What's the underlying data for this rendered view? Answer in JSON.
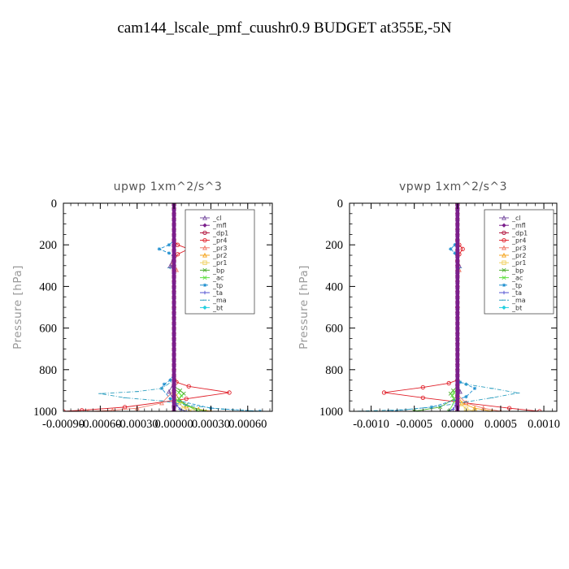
{
  "title": "cam144_lscale_pmf_cuushr0.9  BUDGET at355E,-5N",
  "colors": {
    "_cl": "#7b52a3",
    "_mfl": "#7b1f8c",
    "_dp1": "#b0103a",
    "_pr4": "#e0202a",
    "_pr3": "#f07a6a",
    "_pr2": "#f5a623",
    "_pr1": "#f0d060",
    "_bp": "#50b030",
    "_ac": "#60e040",
    "_tp": "#2090d0",
    "_ta": "#5050d0",
    "_ma": "#30a0c0",
    "_bt": "#20d0e0"
  },
  "chart_data": [
    {
      "type": "line",
      "title": "upwp   1xm^2/s^3",
      "ylabel": "Pressure [hPa]",
      "xlim": [
        -0.0009,
        0.0008
      ],
      "ylim": [
        1000,
        0
      ],
      "xtick_labels": [
        "-0.00090",
        "-0.00060",
        "-0.00030",
        "0.00000",
        "0.00030",
        "0.00060"
      ],
      "xtick_values": [
        -0.0009,
        -0.0006,
        -0.0003,
        0.0,
        0.0003,
        0.0006
      ],
      "ytick_labels": [
        "0",
        "200",
        "400",
        "600",
        "800",
        "1000"
      ],
      "ytick_values": [
        0,
        200,
        400,
        600,
        800,
        1000
      ],
      "legend": [
        "_cl",
        "_mfl",
        "_dp1",
        "_pr4",
        "_pr3",
        "_pr2",
        "_pr1",
        "_bp",
        "_ac",
        "_tp",
        "_ta",
        "_ma",
        "_bt"
      ],
      "legend_loc": "upper right",
      "series": [
        {
          "name": "_pr4",
          "x": [
            0,
            0,
            3e-05,
            0.00012,
            3e-05,
            0,
            0,
            0,
            0,
            2e-05,
            0.00012,
            0.00045,
            0.0001,
            -0.0004,
            -0.00075,
            -0.0009
          ],
          "y": [
            0,
            180,
            200,
            220,
            245,
            280,
            320,
            500,
            800,
            860,
            880,
            910,
            940,
            980,
            995,
            1000
          ]
        },
        {
          "name": "_pr3",
          "x": [
            0,
            0,
            -2e-05,
            2e-05,
            0,
            0,
            -0.0001,
            -0.0003,
            -0.0005,
            -0.0007
          ],
          "y": [
            0,
            250,
            290,
            320,
            350,
            900,
            960,
            985,
            995,
            1000
          ]
        },
        {
          "name": "_pr2",
          "x": [
            0,
            0,
            5e-05,
            0.0001,
            0.0002,
            0.0003
          ],
          "y": [
            0,
            900,
            950,
            975,
            990,
            1000
          ]
        },
        {
          "name": "_pr1",
          "x": [
            0,
            0,
            4e-05,
            8e-05,
            0.00015
          ],
          "y": [
            0,
            920,
            960,
            985,
            1000
          ]
        },
        {
          "name": "_bp",
          "x": [
            0,
            0,
            5e-05,
            8e-05,
            4e-05,
            0.0001,
            0.00025
          ],
          "y": [
            0,
            880,
            900,
            915,
            940,
            970,
            1000
          ]
        },
        {
          "name": "_ac",
          "x": [
            0,
            0,
            4e-05,
            6e-05,
            3e-05,
            0.0002
          ],
          "y": [
            0,
            890,
            910,
            925,
            950,
            1000
          ]
        },
        {
          "name": "_tp",
          "x": [
            0,
            0,
            -4e-05,
            -0.00012,
            -4e-05,
            0,
            0,
            -3e-05,
            -8e-05,
            -0.0001,
            -3e-05,
            0.0003,
            0.0007
          ],
          "y": [
            0,
            180,
            200,
            220,
            240,
            260,
            820,
            850,
            870,
            890,
            940,
            985,
            1000
          ]
        },
        {
          "name": "_ma",
          "x": [
            0,
            0,
            -4e-05,
            0,
            0,
            -0.0001,
            -0.0003,
            -0.0006,
            -0.0004,
            -0.0001,
            0.0001,
            0.0004,
            0.0007
          ],
          "y": [
            0,
            290,
            310,
            330,
            850,
            890,
            905,
            915,
            935,
            950,
            970,
            990,
            1000
          ]
        },
        {
          "name": "_cl",
          "x": [
            0,
            0,
            -3e-05,
            0,
            0,
            -4e-05,
            0,
            0
          ],
          "y": [
            0,
            240,
            300,
            330,
            860,
            905,
            950,
            1000
          ]
        },
        {
          "name": "_ta",
          "x": [
            0,
            0,
            2e-05,
            5e-05,
            0.0001
          ],
          "y": [
            0,
            940,
            970,
            990,
            1000
          ]
        },
        {
          "name": "_bt",
          "x": [
            0,
            0
          ],
          "y": [
            0,
            1000
          ]
        },
        {
          "name": "_dp1",
          "x": [
            0,
            0
          ],
          "y": [
            0,
            1000
          ]
        },
        {
          "name": "_mfl",
          "x": [
            0,
            0
          ],
          "y": [
            0,
            1000
          ]
        }
      ]
    },
    {
      "type": "line",
      "title": "vpwp   1xm^2/s^3",
      "ylabel": "Pressure [hPa]",
      "xlim": [
        -0.00125,
        0.00115
      ],
      "ylim": [
        1000,
        0
      ],
      "xtick_labels": [
        "-0.0010",
        "-0.0005",
        "0.0000",
        "0.0005",
        "0.0010"
      ],
      "xtick_values": [
        -0.001,
        -0.0005,
        0.0,
        0.0005,
        0.001
      ],
      "ytick_labels": [
        "0",
        "200",
        "400",
        "600",
        "800",
        "1000"
      ],
      "ytick_values": [
        0,
        200,
        400,
        600,
        800,
        1000
      ],
      "legend": [
        "_cl",
        "_mfl",
        "_dp1",
        "_pr4",
        "_pr3",
        "_pr2",
        "_pr1",
        "_bp",
        "_ac",
        "_tp",
        "_ta",
        "_ma",
        "_bt"
      ],
      "legend_loc": "upper right",
      "series": [
        {
          "name": "_pr4",
          "x": [
            0,
            0,
            2e-05,
            6e-05,
            2e-05,
            0,
            0,
            0,
            -0.0001,
            -0.0004,
            -0.00085,
            -0.0004,
            0.0001,
            0.0006,
            0.00095
          ],
          "y": [
            0,
            180,
            200,
            220,
            245,
            280,
            500,
            850,
            865,
            885,
            910,
            935,
            960,
            985,
            1000
          ]
        },
        {
          "name": "_pr3",
          "x": [
            0,
            0,
            1e-05,
            2e-05,
            0,
            0,
            0.0001,
            0.0003,
            0.0005
          ],
          "y": [
            0,
            250,
            290,
            320,
            350,
            920,
            960,
            985,
            1000
          ]
        },
        {
          "name": "_pr2",
          "x": [
            0,
            0,
            5e-05,
            0.0002,
            0.0004
          ],
          "y": [
            0,
            920,
            960,
            985,
            1000
          ]
        },
        {
          "name": "_pr1",
          "x": [
            0,
            0,
            4e-05,
            0.0001,
            0.0002
          ],
          "y": [
            0,
            930,
            965,
            988,
            1000
          ]
        },
        {
          "name": "_bp",
          "x": [
            0,
            0,
            -5e-05,
            -8e-05,
            -4e-05,
            -0.0002,
            -0.0005
          ],
          "y": [
            0,
            880,
            900,
            915,
            940,
            980,
            1000
          ]
        },
        {
          "name": "_ac",
          "x": [
            0,
            0,
            -4e-05,
            -6e-05,
            -3e-05,
            -0.0001
          ],
          "y": [
            0,
            890,
            910,
            925,
            950,
            1000
          ]
        },
        {
          "name": "_tp",
          "x": [
            0,
            0,
            -3e-05,
            -8e-05,
            -3e-05,
            0,
            0,
            3e-05,
            0.0001,
            0.0002,
            0.0001,
            -0.0003,
            -0.0008
          ],
          "y": [
            0,
            180,
            200,
            220,
            240,
            260,
            850,
            860,
            870,
            890,
            930,
            980,
            1000
          ]
        },
        {
          "name": "_ma",
          "x": [
            0,
            0,
            3e-05,
            0,
            0,
            0.0001,
            0.0004,
            0.0007,
            0.0004,
            0.0001,
            -0.0002,
            -0.0006,
            -0.0012
          ],
          "y": [
            0,
            290,
            310,
            330,
            850,
            870,
            890,
            912,
            935,
            955,
            975,
            992,
            1000
          ]
        },
        {
          "name": "_cl",
          "x": [
            0,
            0,
            2e-05,
            0,
            0,
            3e-05,
            0,
            0
          ],
          "y": [
            0,
            240,
            300,
            330,
            860,
            905,
            950,
            1000
          ]
        },
        {
          "name": "_ta",
          "x": [
            0,
            0,
            -2e-05,
            -5e-05,
            -0.0001
          ],
          "y": [
            0,
            940,
            970,
            990,
            1000
          ]
        },
        {
          "name": "_bt",
          "x": [
            0,
            0
          ],
          "y": [
            0,
            1000
          ]
        },
        {
          "name": "_dp1",
          "x": [
            0,
            0
          ],
          "y": [
            0,
            1000
          ]
        },
        {
          "name": "_mfl",
          "x": [
            0,
            0
          ],
          "y": [
            0,
            1000
          ]
        }
      ]
    }
  ]
}
